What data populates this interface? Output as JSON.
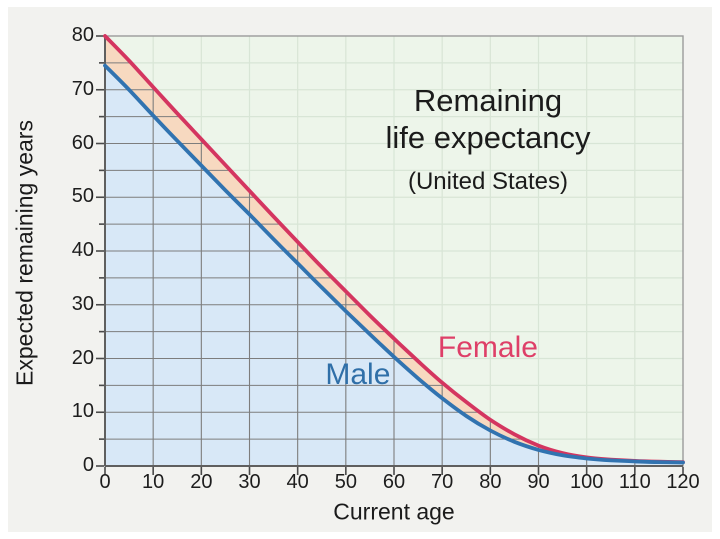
{
  "page": {
    "background": "#ffffff",
    "panel_background": "#f2f2ef"
  },
  "chart_data": {
    "type": "area",
    "title_line1": "Remaining",
    "title_line2": "life expectancy",
    "subtitle": "(United States)",
    "xlabel": "Current age",
    "ylabel": "Expected remaining years",
    "xlim": [
      0,
      120
    ],
    "ylim": [
      0,
      80
    ],
    "x_ticks": [
      0,
      10,
      20,
      30,
      40,
      50,
      60,
      70,
      80,
      90,
      100,
      110,
      120
    ],
    "y_ticks": [
      0,
      10,
      20,
      30,
      40,
      50,
      60,
      70,
      80
    ],
    "y_minor_tick_step": 5,
    "x_grid_step": 10,
    "y_grid_step": 5,
    "grid_on": true,
    "legend": "inline-curve-labels",
    "x": [
      0,
      5,
      10,
      15,
      20,
      25,
      30,
      35,
      40,
      45,
      50,
      55,
      60,
      65,
      70,
      75,
      80,
      85,
      90,
      95,
      100,
      105,
      110,
      115,
      120
    ],
    "series": [
      {
        "name": "Female",
        "line_color": "#d43560",
        "label_color": "#de3f68",
        "fill_color": "#f7d9c0",
        "label_anchor": {
          "age": 79.5,
          "value": 22
        },
        "values": [
          80,
          75.4,
          70.5,
          65.6,
          60.8,
          56,
          51.2,
          46.4,
          41.7,
          37,
          32.5,
          28,
          23.7,
          19.5,
          15.5,
          11.9,
          8.6,
          5.9,
          3.8,
          2.4,
          1.6,
          1.2,
          0.95,
          0.8,
          0.7
        ]
      },
      {
        "name": "Male",
        "line_color": "#3173b0",
        "label_color": "#2f6fa8",
        "fill_color": "#d8e8f7",
        "label_anchor": {
          "age": 52.5,
          "value": 17
        },
        "values": [
          74.5,
          70,
          65.2,
          60.5,
          55.9,
          51.3,
          46.8,
          42.2,
          37.7,
          33.2,
          28.8,
          24.5,
          20.3,
          16.3,
          12.6,
          9.3,
          6.6,
          4.5,
          3,
          2,
          1.4,
          1.05,
          0.85,
          0.72,
          0.65
        ]
      }
    ],
    "plot_background": "#edf5ea",
    "grid_faint_color": "#d8e5d6",
    "grid_dark_color": "#7d7d7d",
    "border_color": "#9b9b9b",
    "axis_color": "#5f5f5f",
    "tick_color": "#4a4a4a",
    "text_color": "#1b1b1b"
  }
}
